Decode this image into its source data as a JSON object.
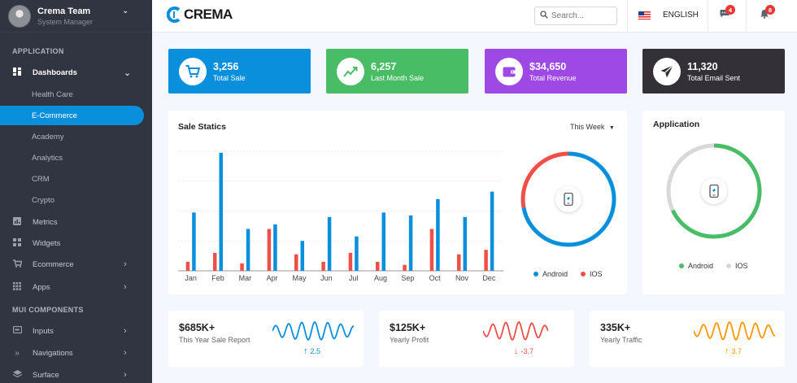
{
  "profile": {
    "name": "Crema Team",
    "role": "System Manager"
  },
  "sidebar": {
    "application_header": "APPLICATION",
    "components_header": "MUI COMPONENTS",
    "dashboards": "Dashboards",
    "sub_items": [
      "Health Care",
      "E-Commerce",
      "Academy",
      "Analytics",
      "CRM",
      "Crypto"
    ],
    "items": [
      {
        "label": "Metrics",
        "icon": "bar-chart-icon"
      },
      {
        "label": "Widgets",
        "icon": "widgets-icon"
      },
      {
        "label": "Ecommerce",
        "icon": "cart-icon"
      },
      {
        "label": "Apps",
        "icon": "apps-grid-icon"
      },
      {
        "label": "Inputs",
        "icon": "input-icon"
      },
      {
        "label": "Navigations",
        "icon": "double-chevron-icon"
      },
      {
        "label": "Surface",
        "icon": "layers-icon"
      }
    ]
  },
  "header": {
    "brand": "CREMA",
    "search_placeholder": "Search...",
    "language": "ENGLISH",
    "messages_count": "4",
    "notifications_count": "8"
  },
  "stats": [
    {
      "value": "3,256",
      "label": "Total Sale",
      "color": "#0a8fdc",
      "icon": "cart-icon"
    },
    {
      "value": "6,257",
      "label": "Last Month Sale",
      "color": "#49bd65",
      "icon": "trend-up-icon"
    },
    {
      "value": "$34,650",
      "label": "Total Revenue",
      "color": "#9e49e6",
      "icon": "wallet-icon"
    },
    {
      "value": "11,320",
      "label": "Total Email Sent",
      "color": "#333137",
      "icon": "send-icon"
    }
  ],
  "sale_statics": {
    "title": "Sale Statics",
    "period": "This Week"
  },
  "application": {
    "title": "Application"
  },
  "legends": {
    "android": "Android",
    "ios": "IOS"
  },
  "colors": {
    "android_bar": "#0a8fdc",
    "ios_bar": "#f04f47",
    "android_ring": "#49bd65",
    "ios_ring": "#d8d8d8"
  },
  "chart_data": [
    {
      "type": "bar",
      "title": "Sale Statics",
      "categories": [
        "Jan",
        "Feb",
        "Mar",
        "Apr",
        "May",
        "Jun",
        "Jul",
        "Aug",
        "Sep",
        "Oct",
        "Nov",
        "Dec"
      ],
      "series": [
        {
          "name": "IOS",
          "values": [
            3,
            6,
            2.5,
            14,
            5.5,
            3,
            6,
            3,
            2,
            14,
            5.5,
            7
          ]
        },
        {
          "name": "Android",
          "values": [
            19.5,
            39.5,
            14,
            15.5,
            10,
            18,
            11.5,
            19.5,
            18.5,
            24,
            18,
            26.5
          ]
        }
      ],
      "ylim": [
        0,
        40
      ],
      "grid": true
    },
    {
      "type": "pie",
      "categories": [
        "Android",
        "IOS"
      ],
      "values": [
        72,
        28
      ]
    },
    {
      "type": "pie",
      "categories": [
        "Android",
        "IOS"
      ],
      "values": [
        68,
        32
      ]
    }
  ],
  "mini_stats": [
    {
      "value": "$685K+",
      "label": "This Year Sale Report",
      "delta": "2.5",
      "direction": "up",
      "color": "#0a8fdc"
    },
    {
      "value": "$125K+",
      "label": "Yearly Profit",
      "delta": "-3.7",
      "direction": "down",
      "color": "#f04f47"
    },
    {
      "value": "335K+",
      "label": "Yearly Traffic",
      "delta": "3.7",
      "direction": "up",
      "color": "#ff9800"
    }
  ]
}
